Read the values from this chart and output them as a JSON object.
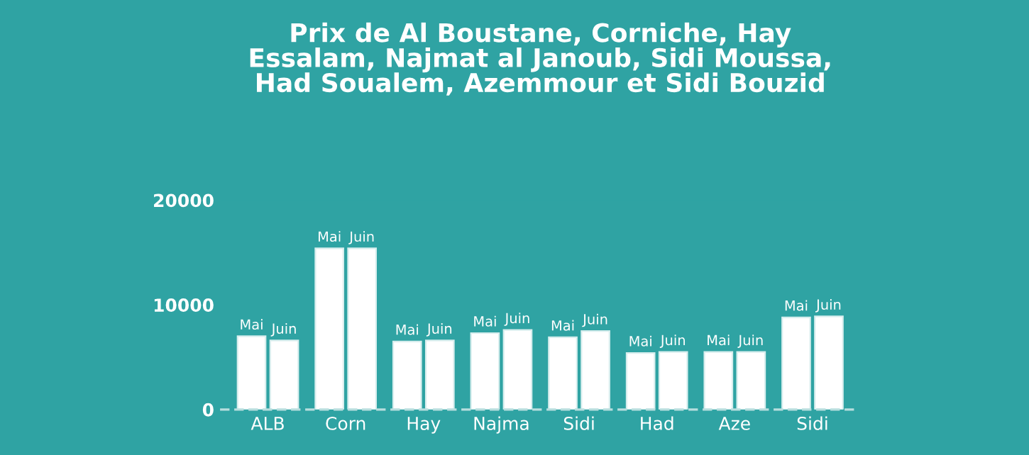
{
  "chart_data": {
    "type": "bar",
    "title": "Prix de Al Boustane, Corniche, Hay\nEssalam, Najmat al Janoub, Sidi Moussa,\nHad Soualem, Azemmour et Sidi Bouzid",
    "categories": [
      "ALB",
      "Corn",
      "Hay",
      "Najma",
      "Sidi",
      "Had",
      "Aze",
      "Sidi"
    ],
    "series": [
      {
        "name": "Mai",
        "color": "#ffffff",
        "values": [
          7000,
          15400,
          6500,
          7300,
          6900,
          5400,
          5500,
          8800
        ]
      },
      {
        "name": "Juin",
        "color": "#ffffff",
        "values": [
          6600,
          15400,
          6600,
          7600,
          7500,
          5500,
          5500,
          8900
        ]
      }
    ],
    "ylim": [
      0,
      20000
    ],
    "yticks": [
      0,
      10000,
      20000
    ],
    "grid": false,
    "legend": false
  }
}
